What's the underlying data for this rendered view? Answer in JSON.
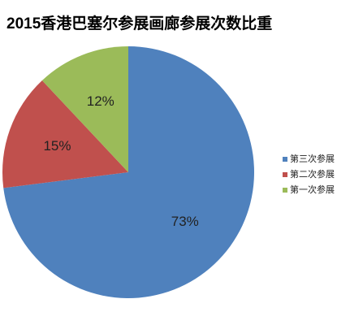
{
  "chart_data": {
    "type": "pie",
    "title": "2015香港巴塞尔参展画廊参展次数比重",
    "categories": [
      "第三次参展",
      "第二次参展",
      "第一次参展"
    ],
    "values": [
      73,
      15,
      12
    ],
    "value_labels": [
      "73%",
      "15%",
      "12%"
    ],
    "colors": [
      "#4f81bd",
      "#c0504d",
      "#9bbb59"
    ],
    "legend": "right"
  }
}
